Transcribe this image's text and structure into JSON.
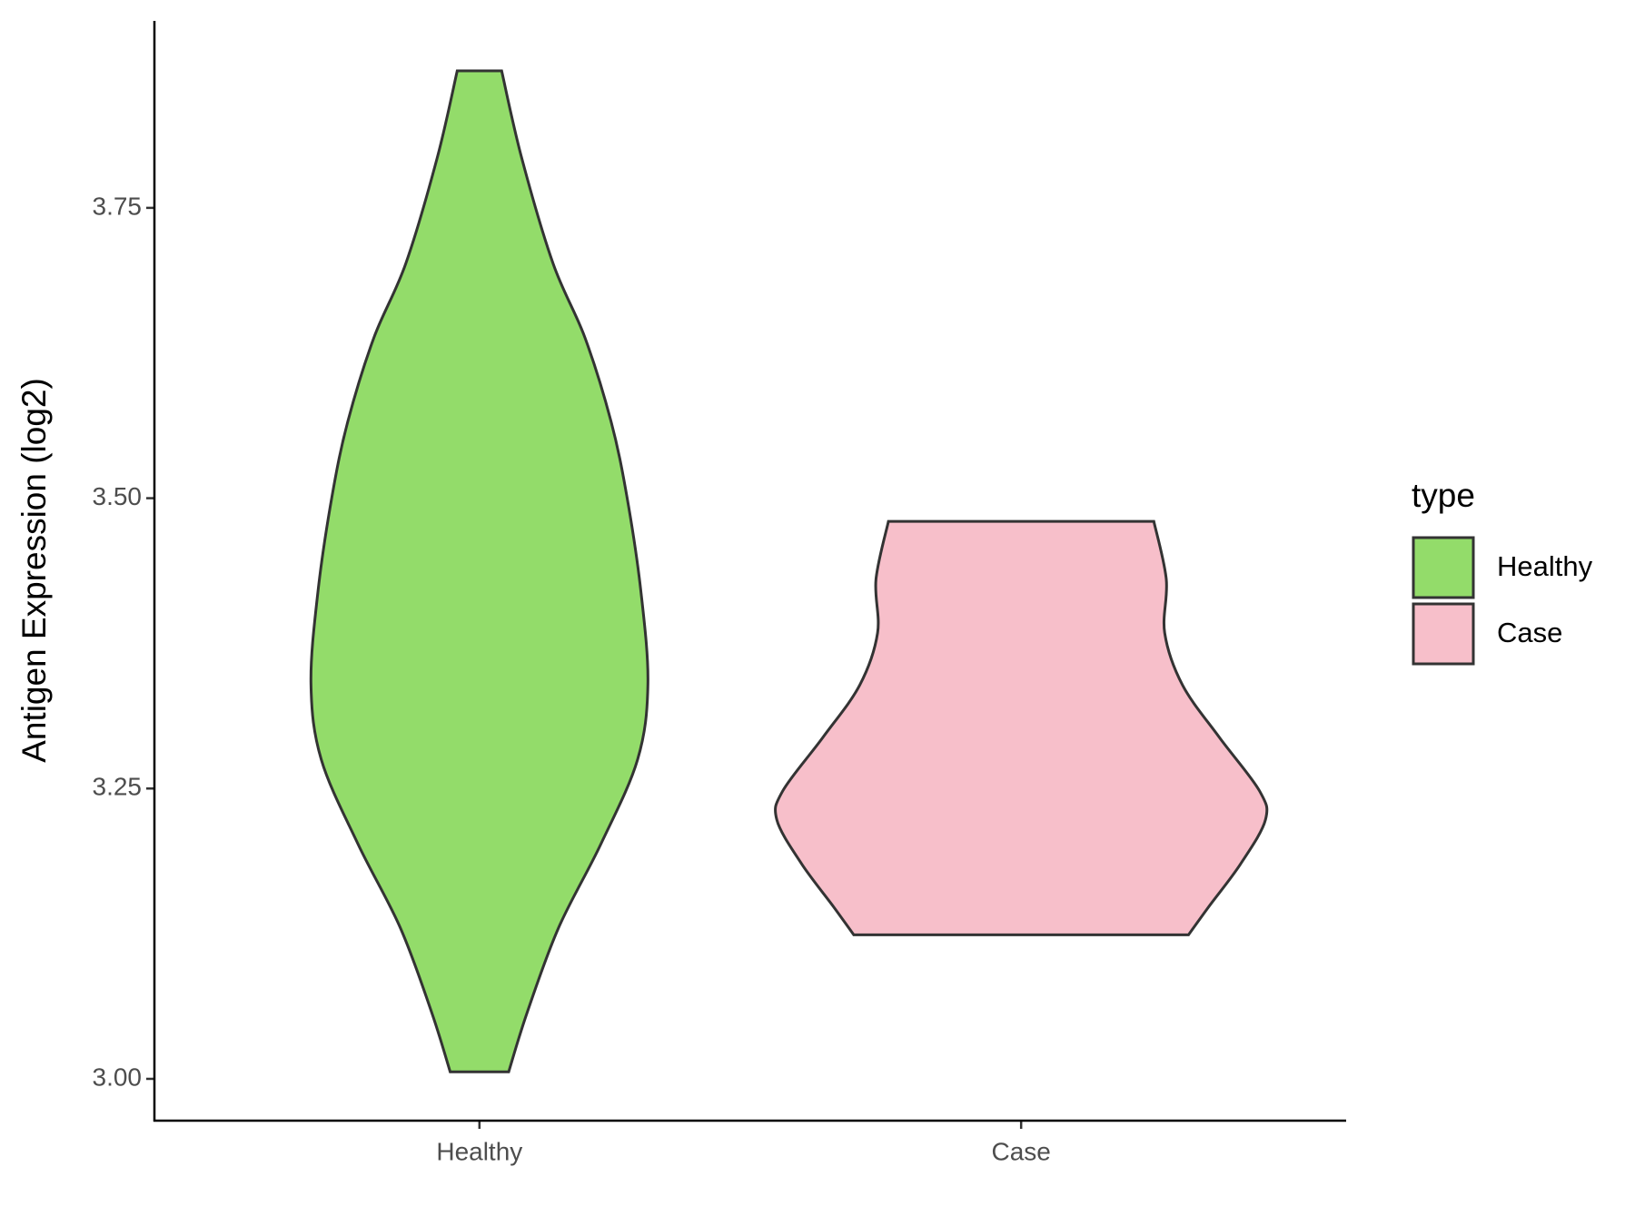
{
  "chart_data": {
    "type": "violin",
    "ylabel": "Antigen Expression (log2)",
    "categories": [
      "Healthy",
      "Case"
    ],
    "legend_title": "type",
    "legend_position": "right",
    "series": [
      {
        "name": "Healthy",
        "color": "#93dc6a",
        "y": [
          3.868,
          3.793,
          3.702,
          3.638,
          3.566,
          3.502,
          3.42,
          3.34,
          3.275,
          3.202,
          3.13,
          3.057,
          3.006
        ],
        "density": [
          0.041,
          0.078,
          0.136,
          0.195,
          0.243,
          0.272,
          0.298,
          0.311,
          0.292,
          0.224,
          0.146,
          0.088,
          0.054
        ]
      },
      {
        "name": "Case",
        "color": "#f7bfca",
        "y": [
          3.48,
          3.43,
          3.384,
          3.339,
          3.294,
          3.248,
          3.223,
          3.185,
          3.148,
          3.124
        ],
        "density": [
          0.245,
          0.268,
          0.265,
          0.298,
          0.366,
          0.44,
          0.451,
          0.405,
          0.346,
          0.309
        ]
      }
    ],
    "ylim": [
      2.964,
      3.911
    ],
    "yticks": [
      {
        "value": 3,
        "label": "3.00"
      },
      {
        "value": 3.25,
        "label": "3.25"
      },
      {
        "value": 3.5,
        "label": "3.50"
      },
      {
        "value": 3.75,
        "label": "3.75"
      }
    ]
  }
}
